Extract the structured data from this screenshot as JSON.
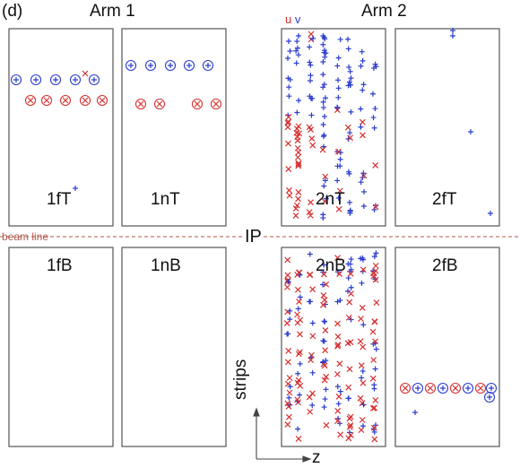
{
  "figure": {
    "panel_tag": "(d)",
    "arm1_label": "Arm 1",
    "arm2_label": "Arm 2",
    "beam_line_label": "beam line",
    "ip_label": "IP",
    "strips_axis_label": "strips",
    "z_axis_label": "z",
    "u_label": "u",
    "v_label": "v"
  },
  "colors": {
    "u_hits": "#d63030",
    "v_hits": "#2a3ccf",
    "beam_line": "#c0796a",
    "frame": "#555555"
  },
  "panels": [
    {
      "id": "1fT",
      "label": "1fT"
    },
    {
      "id": "1nT",
      "label": "1nT"
    },
    {
      "id": "2nT",
      "label": "2nT"
    },
    {
      "id": "2fT",
      "label": "2fT"
    },
    {
      "id": "1fB",
      "label": "1fB"
    },
    {
      "id": "1nB",
      "label": "1nB"
    },
    {
      "id": "2nB",
      "label": "2nB"
    },
    {
      "id": "2fB",
      "label": "2fB"
    }
  ]
}
